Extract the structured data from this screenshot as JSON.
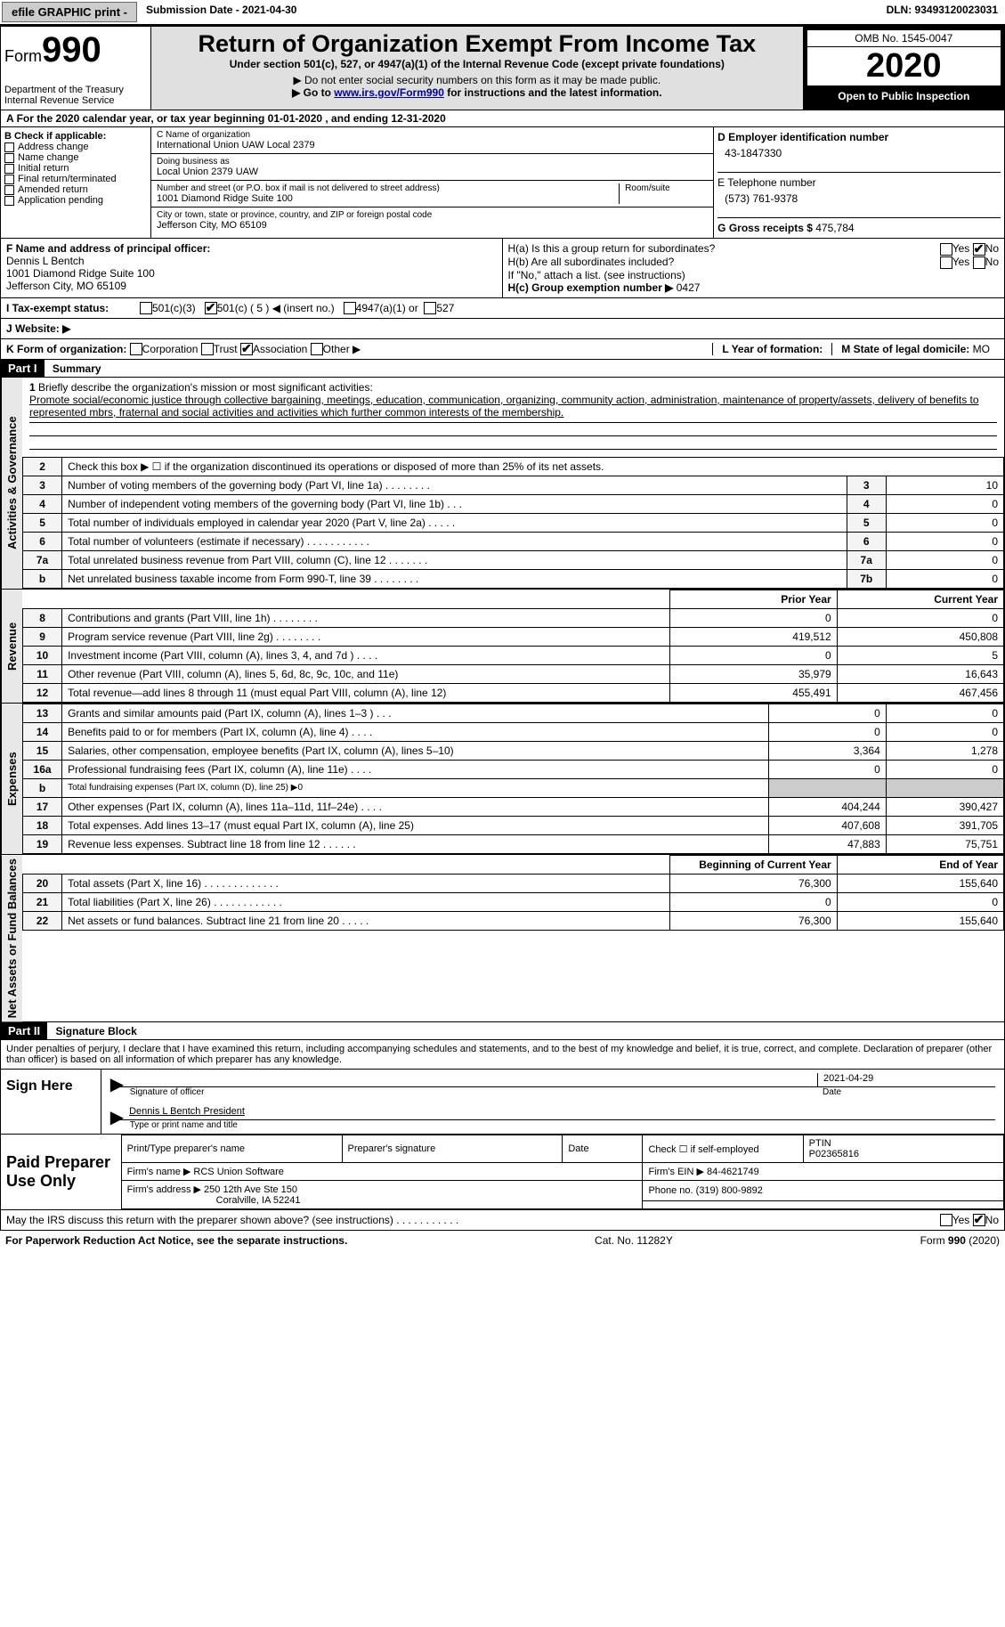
{
  "header": {
    "efile": "efile GRAPHIC print -",
    "submission": "Submission Date - 2021-04-30",
    "dln": "DLN: 93493120023031"
  },
  "formTop": {
    "formWord": "Form",
    "formNum": "990",
    "dept": "Department of the Treasury\nInternal Revenue Service",
    "title": "Return of Organization Exempt From Income Tax",
    "subtitle": "Under section 501(c), 527, or 4947(a)(1) of the Internal Revenue Code (except private foundations)",
    "note1": "▶ Do not enter social security numbers on this form as it may be made public.",
    "note2a": "▶ Go to ",
    "note2link": "www.irs.gov/Form990",
    "note2b": " for instructions and the latest information.",
    "omb": "OMB No. 1545-0047",
    "year": "2020",
    "open": "Open to Public Inspection"
  },
  "lineA": "For the 2020 calendar year, or tax year beginning 01-01-2020    , and ending 12-31-2020",
  "boxB": {
    "label": "B Check if applicable:",
    "items": [
      "Address change",
      "Name change",
      "Initial return",
      "Final return/terminated",
      "Amended return",
      "Application pending"
    ]
  },
  "boxC": {
    "nameLabel": "C Name of organization",
    "name": "International Union UAW Local 2379",
    "dbaLabel": "Doing business as",
    "dba": "Local Union 2379 UAW",
    "addrLabel": "Number and street (or P.O. box if mail is not delivered to street address)",
    "addr": "1001 Diamond Ridge Suite 100",
    "roomLabel": "Room/suite",
    "cityLabel": "City or town, state or province, country, and ZIP or foreign postal code",
    "city": "Jefferson City, MO  65109"
  },
  "boxD": {
    "label": "D Employer identification number",
    "val": "43-1847330"
  },
  "boxE": {
    "label": "E Telephone number",
    "val": "(573) 761-9378"
  },
  "boxG": {
    "label": "G Gross receipts $",
    "val": "475,784"
  },
  "boxF": {
    "label": "F  Name and address of principal officer:",
    "line1": "Dennis L Bentch",
    "line2": "1001 Diamond Ridge Suite 100",
    "line3": "Jefferson City, MO  65109"
  },
  "boxH": {
    "haLabel": "H(a)  Is this a group return for subordinates?",
    "hbLabel": "H(b)  Are all subordinates included?",
    "hbNote": "If \"No,\" attach a list. (see instructions)",
    "hcLabel": "H(c)  Group exemption number ▶",
    "hcVal": "0427",
    "yes": "Yes",
    "no": "No"
  },
  "lineI": {
    "label": "I   Tax-exempt status:",
    "opts": [
      "501(c)(3)",
      "501(c) ( 5 ) ◀ (insert no.)",
      "4947(a)(1) or",
      "527"
    ],
    "checked": 1
  },
  "lineJ": {
    "label": "J   Website: ▶"
  },
  "lineK": {
    "label": "K Form of organization:",
    "opts": [
      "Corporation",
      "Trust",
      "Association",
      "Other ▶"
    ],
    "checked": 2
  },
  "lineL": {
    "label": "L Year of formation:"
  },
  "lineM": {
    "label": "M State of legal domicile:",
    "val": "MO"
  },
  "partI": {
    "hdr": "Part I",
    "title": "Summary",
    "sections": [
      {
        "label": "Activities & Governance",
        "rows": [
          {
            "n": "1",
            "d": "Briefly describe the organization's mission or most significant activities:",
            "text": "Promote social/economic justice through collective bargaining, meetings, education, communication, organizing, community action, administration, maintenance of property/assets, delivery of benefits to represented mbrs, fraternal and social activities and activities which further common interests of the membership."
          },
          {
            "n": "2",
            "d": "Check this box ▶ ☐  if the organization discontinued its operations or disposed of more than 25% of its net assets."
          },
          {
            "n": "3",
            "d": "Number of voting members of the governing body (Part VI, line 1a)   .   .   .   .   .   .   .   .",
            "c": "3",
            "v": "10"
          },
          {
            "n": "4",
            "d": "Number of independent voting members of the governing body (Part VI, line 1b)   .   .   .",
            "c": "4",
            "v": "0"
          },
          {
            "n": "5",
            "d": "Total number of individuals employed in calendar year 2020 (Part V, line 2a)   .   .   .   .   .",
            "c": "5",
            "v": "0"
          },
          {
            "n": "6",
            "d": "Total number of volunteers (estimate if necessary)   .   .   .   .   .   .   .   .   .   .   .",
            "c": "6",
            "v": "0"
          },
          {
            "n": "7a",
            "d": "Total unrelated business revenue from Part VIII, column (C), line 12   .   .   .   .   .   .   .",
            "c": "7a",
            "v": "0"
          },
          {
            "n": "b",
            "d": "Net unrelated business taxable income from Form 990-T, line 39   .   .   .   .   .   .   .   .",
            "c": "7b",
            "v": "0"
          }
        ]
      },
      {
        "label": "Revenue",
        "colHdr": {
          "prior": "Prior Year",
          "curr": "Current Year"
        },
        "rows": [
          {
            "n": "8",
            "d": "Contributions and grants (Part VIII, line 1h)   .   .   .   .   .   .   .   .",
            "p": "0",
            "c": "0"
          },
          {
            "n": "9",
            "d": "Program service revenue (Part VIII, line 2g)   .   .   .   .   .   .   .   .",
            "p": "419,512",
            "c": "450,808"
          },
          {
            "n": "10",
            "d": "Investment income (Part VIII, column (A), lines 3, 4, and 7d )   .   .   .   .",
            "p": "0",
            "c": "5"
          },
          {
            "n": "11",
            "d": "Other revenue (Part VIII, column (A), lines 5, 6d, 8c, 9c, 10c, and 11e)",
            "p": "35,979",
            "c": "16,643"
          },
          {
            "n": "12",
            "d": "Total revenue—add lines 8 through 11 (must equal Part VIII, column (A), line 12)",
            "p": "455,491",
            "c": "467,456"
          }
        ]
      },
      {
        "label": "Expenses",
        "rows": [
          {
            "n": "13",
            "d": "Grants and similar amounts paid (Part IX, column (A), lines 1–3 )   .   .   .",
            "p": "0",
            "c": "0"
          },
          {
            "n": "14",
            "d": "Benefits paid to or for members (Part IX, column (A), line 4)   .   .   .   .",
            "p": "0",
            "c": "0"
          },
          {
            "n": "15",
            "d": "Salaries, other compensation, employee benefits (Part IX, column (A), lines 5–10)",
            "p": "3,364",
            "c": "1,278"
          },
          {
            "n": "16a",
            "d": "Professional fundraising fees (Part IX, column (A), line 11e)   .   .   .   .",
            "p": "0",
            "c": "0"
          },
          {
            "n": "b",
            "d": "Total fundraising expenses (Part IX, column (D), line 25) ▶0",
            "grey": true
          },
          {
            "n": "17",
            "d": "Other expenses (Part IX, column (A), lines 11a–11d, 11f–24e)   .   .   .   .",
            "p": "404,244",
            "c": "390,427"
          },
          {
            "n": "18",
            "d": "Total expenses. Add lines 13–17 (must equal Part IX, column (A), line 25)",
            "p": "407,608",
            "c": "391,705"
          },
          {
            "n": "19",
            "d": "Revenue less expenses. Subtract line 18 from line 12   .   .   .   .   .   .",
            "p": "47,883",
            "c": "75,751"
          }
        ]
      },
      {
        "label": "Net Assets or Fund Balances",
        "colHdr": {
          "prior": "Beginning of Current Year",
          "curr": "End of Year"
        },
        "rows": [
          {
            "n": "20",
            "d": "Total assets (Part X, line 16)   .   .   .   .   .   .   .   .   .   .   .   .   .",
            "p": "76,300",
            "c": "155,640"
          },
          {
            "n": "21",
            "d": "Total liabilities (Part X, line 26)   .   .   .   .   .   .   .   .   .   .   .   .",
            "p": "0",
            "c": "0"
          },
          {
            "n": "22",
            "d": "Net assets or fund balances. Subtract line 21 from line 20   .   .   .   .   .",
            "p": "76,300",
            "c": "155,640"
          }
        ]
      }
    ]
  },
  "partII": {
    "hdr": "Part II",
    "title": "Signature Block",
    "perjury": "Under penalties of perjury, I declare that I have examined this return, including accompanying schedules and statements, and to the best of my knowledge and belief, it is true, correct, and complete. Declaration of preparer (other than officer) is based on all information of which preparer has any knowledge."
  },
  "sign": {
    "here": "Sign Here",
    "sigOfficer": "Signature of officer",
    "date": "2021-04-29",
    "dateLbl": "Date",
    "name": "Dennis L Bentch  President",
    "typeLbl": "Type or print name and title"
  },
  "prep": {
    "label": "Paid Preparer Use Only",
    "cols": {
      "ptname": "Print/Type preparer's name",
      "psig": "Preparer's signature",
      "pdate": "Date",
      "pchk": "Check ☐ if self-employed",
      "ptin": "PTIN"
    },
    "ptinVal": "P02365816",
    "firmNameLbl": "Firm's name   ▶",
    "firmName": "RCS Union Software",
    "firmEinLbl": "Firm's EIN ▶",
    "firmEin": "84-4621749",
    "firmAddrLbl": "Firm's address ▶",
    "firmAddr1": "250 12th Ave Ste 150",
    "firmAddr2": "Coralville, IA  52241",
    "phoneLbl": "Phone no.",
    "phone": "(319) 800-9892"
  },
  "discuss": {
    "q": "May the IRS discuss this return with the preparer shown above? (see instructions)   .   .   .   .   .   .   .   .   .   .   .",
    "yes": "Yes",
    "no": "No"
  },
  "footer": {
    "l": "For Paperwork Reduction Act Notice, see the separate instructions.",
    "m": "Cat. No. 11282Y",
    "r": "Form 990 (2020)"
  },
  "colors": {
    "black": "#000000",
    "grey": "#cccccc",
    "link": "#0000AA",
    "hdrBg": "#E0E0E0"
  }
}
